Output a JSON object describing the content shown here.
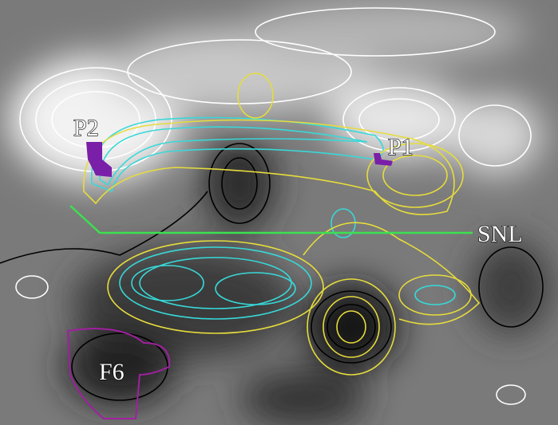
{
  "labels": [
    "P2",
    "P1",
    "SNL",
    "F6"
  ]
}
